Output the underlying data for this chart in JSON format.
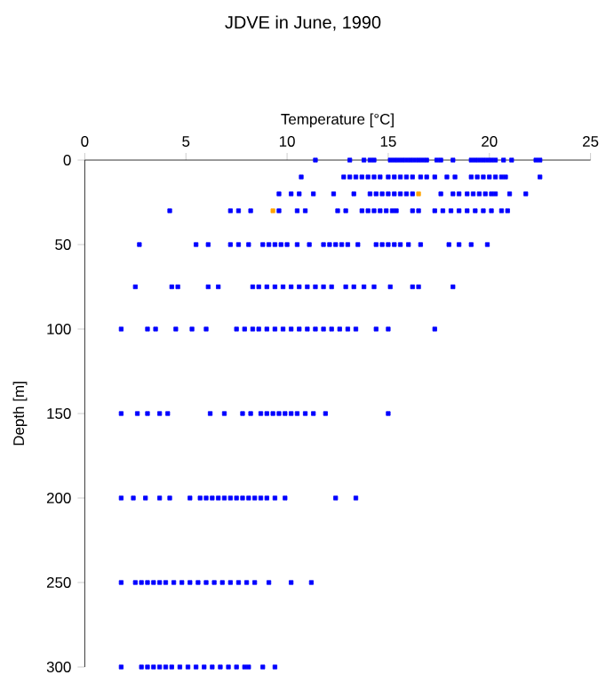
{
  "chart_data": {
    "type": "scatter",
    "title": "JDVE in June, 1990",
    "xlabel": "Temperature [°C]",
    "ylabel": "Depth [m]",
    "xlim": [
      0,
      25
    ],
    "xticks": [
      0,
      5,
      10,
      15,
      20,
      25
    ],
    "ylim": [
      300,
      0
    ],
    "yticks": [
      0,
      50,
      100,
      150,
      200,
      250,
      300
    ],
    "marker": "square",
    "series": [
      {
        "color": "#0000ff",
        "x": [
          11.4,
          13.1,
          13.8,
          14.1,
          14.3,
          15.1,
          15.3,
          15.5,
          15.7,
          15.9,
          16.1,
          16.3,
          16.5,
          16.7,
          16.9,
          17.4,
          17.6,
          18.2,
          19.1,
          19.3,
          19.5,
          19.7,
          19.9,
          20.1,
          20.3,
          20.7,
          21.1,
          22.3,
          22.5
        ],
        "values": [
          0,
          0,
          0,
          0,
          0,
          0,
          0,
          0,
          0,
          0,
          0,
          0,
          0,
          0,
          0,
          0,
          0,
          0,
          0,
          0,
          0,
          0,
          0,
          0,
          0,
          0,
          0,
          0,
          0
        ]
      },
      {
        "color": "#0000ff",
        "x": [
          10.7,
          12.8,
          13.1,
          13.4,
          13.7,
          14.0,
          14.3,
          14.6,
          15.0,
          15.3,
          15.6,
          15.9,
          16.2,
          16.6,
          16.9,
          17.3,
          17.9,
          18.3,
          19.1,
          19.4,
          19.7,
          20.0,
          20.3,
          20.6,
          20.8,
          22.5
        ],
        "values": [
          10,
          10,
          10,
          10,
          10,
          10,
          10,
          10,
          10,
          10,
          10,
          10,
          10,
          10,
          10,
          10,
          10,
          10,
          10,
          10,
          10,
          10,
          10,
          10,
          10,
          10
        ]
      },
      {
        "color": "#0000ff",
        "x": [
          9.6,
          10.2,
          10.6,
          11.3,
          12.3,
          13.3,
          14.1,
          14.4,
          14.7,
          15.0,
          15.3,
          15.6,
          15.9,
          16.2,
          17.6,
          18.2,
          18.5,
          18.9,
          19.2,
          19.5,
          19.8,
          20.1,
          20.3,
          21.0,
          21.8
        ],
        "values": [
          20,
          20,
          20,
          20,
          20,
          20,
          20,
          20,
          20,
          20,
          20,
          20,
          20,
          20,
          20,
          20,
          20,
          20,
          20,
          20,
          20,
          20,
          20,
          20,
          20
        ]
      },
      {
        "color": "#0000ff",
        "x": [
          4.2,
          7.2,
          7.6,
          8.2,
          9.6,
          10.5,
          10.9,
          12.5,
          12.9,
          13.7,
          14.0,
          14.3,
          14.6,
          14.9,
          15.2,
          15.4,
          16.2,
          16.5,
          17.3,
          17.7,
          18.1,
          18.5,
          18.9,
          19.3,
          19.7,
          20.1,
          20.6,
          20.9
        ],
        "values": [
          30,
          30,
          30,
          30,
          30,
          30,
          30,
          30,
          30,
          30,
          30,
          30,
          30,
          30,
          30,
          30,
          30,
          30,
          30,
          30,
          30,
          30,
          30,
          30,
          30,
          30,
          30,
          30
        ]
      },
      {
        "color": "#0000ff",
        "x": [
          2.7,
          5.5,
          6.1,
          7.2,
          7.6,
          8.1,
          8.8,
          9.1,
          9.4,
          9.7,
          10.0,
          10.5,
          11.1,
          11.8,
          12.1,
          12.4,
          12.7,
          13.0,
          13.5,
          14.4,
          14.7,
          15.0,
          15.3,
          15.6,
          16.0,
          16.6,
          18.0,
          18.5,
          19.1,
          19.9
        ],
        "values": [
          50,
          50,
          50,
          50,
          50,
          50,
          50,
          50,
          50,
          50,
          50,
          50,
          50,
          50,
          50,
          50,
          50,
          50,
          50,
          50,
          50,
          50,
          50,
          50,
          50,
          50,
          50,
          50,
          50,
          50
        ]
      },
      {
        "color": "#0000ff",
        "x": [
          2.5,
          4.3,
          4.6,
          6.1,
          6.6,
          8.3,
          8.6,
          9.0,
          9.4,
          9.8,
          10.2,
          10.6,
          11.0,
          11.4,
          11.8,
          12.2,
          12.9,
          13.3,
          13.8,
          14.3,
          15.1,
          16.2,
          16.5,
          18.2
        ],
        "values": [
          75,
          75,
          75,
          75,
          75,
          75,
          75,
          75,
          75,
          75,
          75,
          75,
          75,
          75,
          75,
          75,
          75,
          75,
          75,
          75,
          75,
          75,
          75,
          75
        ]
      },
      {
        "color": "#0000ff",
        "x": [
          1.8,
          3.1,
          3.5,
          4.5,
          5.3,
          6.0,
          7.5,
          7.9,
          8.3,
          8.6,
          9.0,
          9.4,
          9.8,
          10.2,
          10.6,
          11.0,
          11.4,
          11.8,
          12.2,
          12.6,
          13.0,
          13.4,
          14.4,
          15.0,
          17.3
        ],
        "values": [
          100,
          100,
          100,
          100,
          100,
          100,
          100,
          100,
          100,
          100,
          100,
          100,
          100,
          100,
          100,
          100,
          100,
          100,
          100,
          100,
          100,
          100,
          100,
          100,
          100
        ]
      },
      {
        "color": "#0000ff",
        "x": [
          1.8,
          2.6,
          3.1,
          3.7,
          4.1,
          6.2,
          6.9,
          7.8,
          8.2,
          8.7,
          9.0,
          9.3,
          9.6,
          9.9,
          10.2,
          10.5,
          10.9,
          11.3,
          11.9,
          15.0
        ],
        "values": [
          150,
          150,
          150,
          150,
          150,
          150,
          150,
          150,
          150,
          150,
          150,
          150,
          150,
          150,
          150,
          150,
          150,
          150,
          150,
          150
        ]
      },
      {
        "color": "#0000ff",
        "x": [
          1.8,
          2.4,
          3.0,
          3.7,
          4.2,
          5.2,
          5.7,
          6.0,
          6.3,
          6.6,
          6.9,
          7.2,
          7.5,
          7.8,
          8.1,
          8.4,
          8.7,
          9.0,
          9.4,
          9.9,
          12.4,
          13.4
        ],
        "values": [
          200,
          200,
          200,
          200,
          200,
          200,
          200,
          200,
          200,
          200,
          200,
          200,
          200,
          200,
          200,
          200,
          200,
          200,
          200,
          200,
          200,
          200
        ]
      },
      {
        "color": "#0000ff",
        "x": [
          1.8,
          2.5,
          2.8,
          3.1,
          3.4,
          3.7,
          4.0,
          4.4,
          4.8,
          5.2,
          5.6,
          6.0,
          6.4,
          6.8,
          7.2,
          7.6,
          8.0,
          8.4,
          9.1,
          10.2,
          11.2
        ],
        "values": [
          250,
          250,
          250,
          250,
          250,
          250,
          250,
          250,
          250,
          250,
          250,
          250,
          250,
          250,
          250,
          250,
          250,
          250,
          250,
          250,
          250
        ]
      },
      {
        "color": "#0000ff",
        "x": [
          1.8,
          2.8,
          3.1,
          3.4,
          3.7,
          4.0,
          4.3,
          4.7,
          5.1,
          5.5,
          5.9,
          6.3,
          6.7,
          7.1,
          7.5,
          7.9,
          8.1,
          8.8,
          9.4
        ],
        "values": [
          300,
          300,
          300,
          300,
          300,
          300,
          300,
          300,
          300,
          300,
          300,
          300,
          300,
          300,
          300,
          300,
          300,
          300,
          300
        ]
      },
      {
        "color": "#ffa500",
        "x": [
          16.5,
          9.3
        ],
        "values": [
          20,
          30
        ]
      }
    ]
  }
}
